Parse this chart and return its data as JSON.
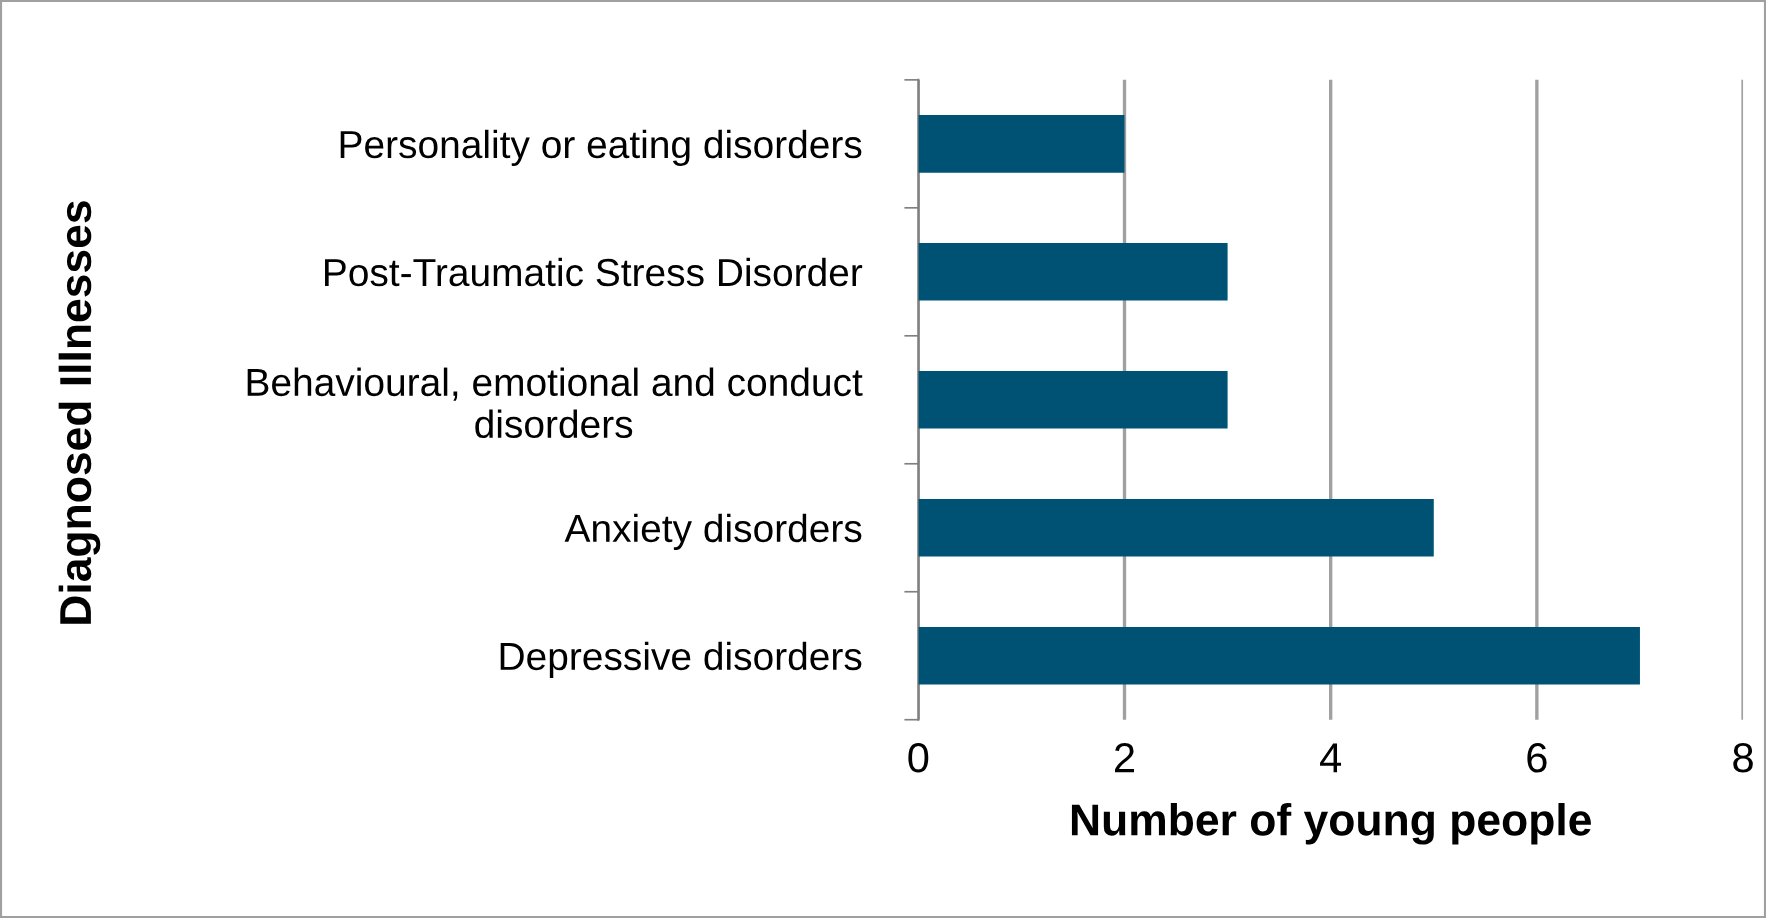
{
  "chart_data": {
    "type": "bar",
    "orientation": "horizontal",
    "xlabel": "Number of young people",
    "ylabel": "Diagnosed Illnesses",
    "categories": [
      "Personality or eating disorders",
      "Post-Traumatic Stress Disorder",
      "Behavioural, emotional and conduct\ndisorders",
      "Anxiety disorders",
      "Depressive disorders"
    ],
    "values": [
      2,
      3,
      3,
      5,
      7
    ],
    "color": "#005274",
    "xlim": [
      0,
      8
    ],
    "xticks": [
      0,
      2,
      4,
      6,
      8
    ],
    "grid": "x"
  }
}
